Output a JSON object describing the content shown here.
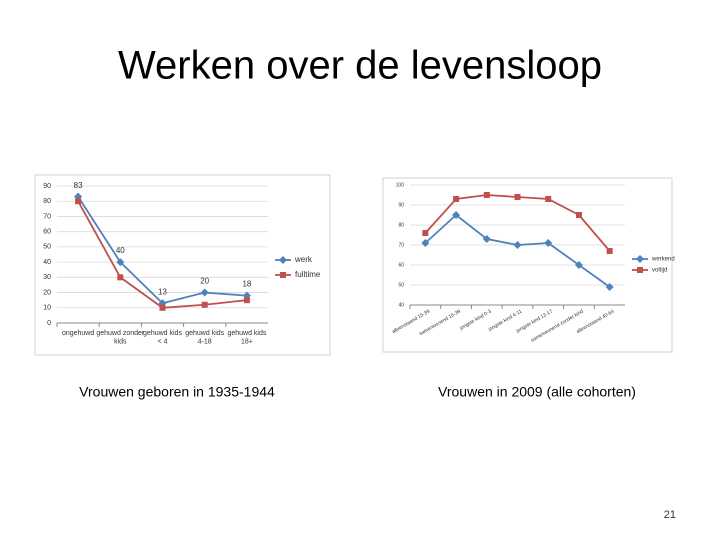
{
  "title": "Werken over de levensloop",
  "page_number": "21",
  "chart_data": [
    {
      "type": "line",
      "caption": "Vrouwen geboren in 1935-1944",
      "categories": [
        "ongehuwd",
        "gehuwd zonder kids",
        "gehuwd kids < 4",
        "gehuwd kids 4-18",
        "gehuwd kids 18+"
      ],
      "series": [
        {
          "name": "werk",
          "color": "#4f81bd",
          "marker": "diamond",
          "data_labels": true,
          "values": [
            83,
            40,
            13,
            20,
            18
          ]
        },
        {
          "name": "fulltime",
          "color": "#c0504d",
          "marker": "square",
          "values": [
            80,
            30,
            10,
            12,
            15
          ]
        }
      ],
      "ylim": [
        0,
        90
      ],
      "yticks": [
        0,
        10,
        20,
        30,
        40,
        50,
        60,
        70,
        80,
        90
      ],
      "grid": true,
      "legend": "right"
    },
    {
      "type": "line",
      "caption": "Vrouwen in 2009 (alle cohorten)",
      "categories": [
        "alleenstaand 15-39",
        "samenwonend 15-39",
        "jongste kind 0-3",
        "jongste kind 4-11",
        "jongste kind 12-17",
        "samenwonend zonder kind",
        "alleenstaand 40-64"
      ],
      "series": [
        {
          "name": "werkend",
          "color": "#4f81bd",
          "marker": "diamond",
          "values": [
            71,
            85,
            73,
            70,
            71,
            60,
            49
          ]
        },
        {
          "name": "voltijd",
          "color": "#c0504d",
          "marker": "square",
          "values": [
            76,
            93,
            95,
            94,
            93,
            85,
            67
          ]
        }
      ],
      "ylim": [
        40,
        100
      ],
      "yticks": [
        40,
        50,
        60,
        70,
        80,
        90,
        100
      ],
      "grid": true,
      "legend": "right"
    }
  ]
}
